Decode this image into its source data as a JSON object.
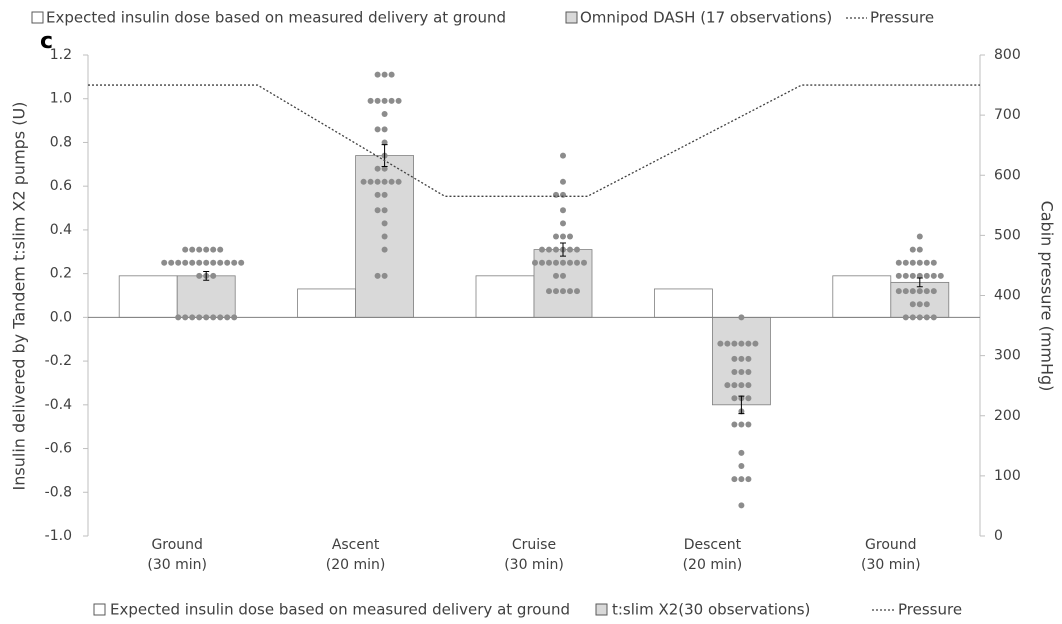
{
  "chart_data": {
    "type": "bar",
    "panel_label": "c",
    "top_legend": [
      "Expected insulin dose based on measured delivery at ground",
      "Omnipod DASH (17 observations)",
      "Pressure"
    ],
    "y_label": "Insulin delivered by Tandem t:slim X2 pumps (U)",
    "y2_label": "Cabin pressure (mmHg)",
    "categories": [
      [
        "Ground",
        "(30 min)"
      ],
      [
        "Ascent",
        "(20 min)"
      ],
      [
        "Cruise",
        "(30 min)"
      ],
      [
        "Descent",
        "(20 min)"
      ],
      [
        "Ground",
        "(30 min)"
      ]
    ],
    "ylim": [
      -1.0,
      1.2
    ],
    "yticks": [
      {
        "value": -1.0,
        "label": "-1.0"
      },
      -0.8,
      -0.6,
      -0.4,
      -0.2,
      {
        "value": 0,
        "label": "0.0"
      },
      0.2,
      0.4,
      0.6,
      0.8,
      {
        "value": 1.0,
        "label": "1.0"
      },
      1.2
    ],
    "y2lim": [
      0,
      800
    ],
    "y2ticks": [
      0,
      100,
      200,
      300,
      400,
      500,
      600,
      700,
      800
    ],
    "series": [
      {
        "name": "Expected insulin dose based on measured delivery at ground",
        "color": "#ffffff",
        "values": [
          0.19,
          0.13,
          0.19,
          0.13,
          0.19
        ]
      },
      {
        "name": "t:slim X2(30 observations)",
        "color": "#d9d9d9",
        "values": [
          0.19,
          0.74,
          0.31,
          -0.4,
          0.16
        ],
        "errors": [
          0.02,
          0.05,
          0.03,
          0.04,
          0.02
        ],
        "point_color": "#8c8c8c",
        "points": [
          [
            0.31,
            0.31,
            0.31,
            0.31,
            0.31,
            0.25,
            0.25,
            0.25,
            0.25,
            0.25,
            0.25,
            0.25,
            0.25,
            0.25,
            0.19,
            0.19,
            0.19,
            0,
            0,
            0,
            0,
            0,
            0,
            0,
            0.25,
            0.25,
            0.31,
            0.25,
            0,
            0
          ],
          [
            1.11,
            1.11,
            1.11,
            0.99,
            0.99,
            0.99,
            0.99,
            0.99,
            0.93,
            0.86,
            0.86,
            0.8,
            0.74,
            0.68,
            0.68,
            0.62,
            0.62,
            0.62,
            0.62,
            0.62,
            0.62,
            0.56,
            0.56,
            0.49,
            0.49,
            0.43,
            0.37,
            0.31,
            0.19,
            0.19
          ],
          [
            0.74,
            0.62,
            0.56,
            0.56,
            0.49,
            0.43,
            0.37,
            0.37,
            0.31,
            0.31,
            0.31,
            0.31,
            0.25,
            0.25,
            0.25,
            0.25,
            0.25,
            0.25,
            0.19,
            0.19,
            0.12,
            0.12,
            0.12,
            0.12,
            0.12,
            0.31,
            0.25,
            0.25,
            0.37,
            0.31
          ],
          [
            0,
            -0.12,
            -0.12,
            -0.12,
            -0.12,
            -0.12,
            -0.19,
            -0.19,
            -0.25,
            -0.25,
            -0.31,
            -0.31,
            -0.31,
            -0.37,
            -0.37,
            -0.43,
            -0.49,
            -0.49,
            -0.49,
            -0.62,
            -0.68,
            -0.74,
            -0.74,
            -0.74,
            -0.86,
            -0.12,
            -0.25,
            -0.37,
            -0.19,
            -0.31
          ],
          [
            0.37,
            0.31,
            0.31,
            0.25,
            0.25,
            0.25,
            0.25,
            0.19,
            0.19,
            0.19,
            0.19,
            0.19,
            0.12,
            0.12,
            0.12,
            0.12,
            0.06,
            0.06,
            0,
            0,
            0,
            0,
            0.25,
            0.19,
            0.12,
            0.06,
            0,
            0.19,
            0.12,
            0.25
          ]
        ]
      },
      {
        "name": "Pressure",
        "color": "#404040",
        "axis": "y2",
        "x": [
          -0.5,
          0.45,
          1.5,
          2.3,
          3.5,
          4.5
        ],
        "values": [
          750,
          750,
          565,
          565,
          750,
          750
        ]
      }
    ]
  }
}
